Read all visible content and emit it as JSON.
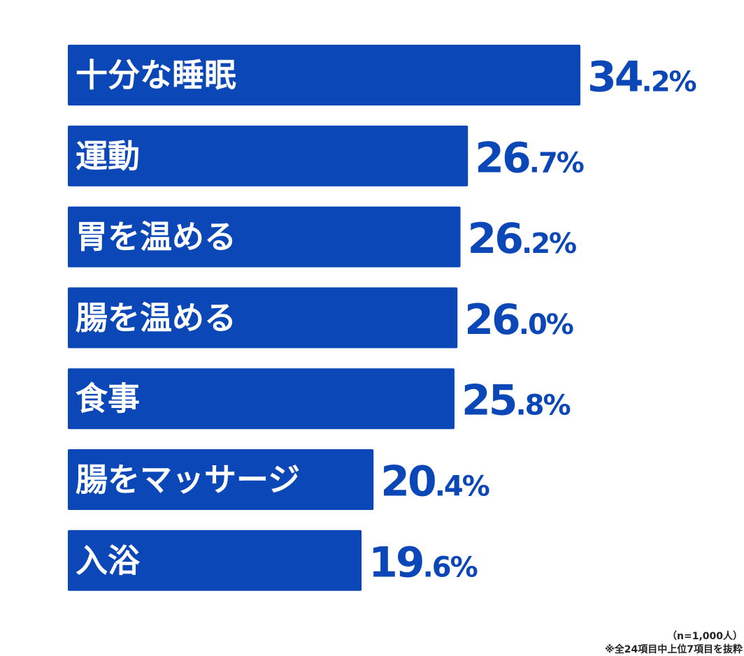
{
  "chart_data": {
    "type": "bar",
    "orientation": "horizontal",
    "categories": [
      "十分な睡眠",
      "運動",
      "胃を温める",
      "腸を温める",
      "食事",
      "腸をマッサージ",
      "入浴"
    ],
    "values": [
      34.2,
      26.7,
      26.2,
      26.0,
      25.8,
      20.4,
      19.6
    ],
    "value_labels": [
      {
        "int": "34",
        "dec": ".2%"
      },
      {
        "int": "26",
        "dec": ".7%"
      },
      {
        "int": "26",
        "dec": ".2%"
      },
      {
        "int": "26",
        "dec": ".0%"
      },
      {
        "int": "25",
        "dec": ".8%"
      },
      {
        "int": "20",
        "dec": ".4%"
      },
      {
        "int": "19",
        "dec": ".6%"
      }
    ],
    "title": "",
    "xlabel": "",
    "ylabel": "",
    "xlim": [
      0,
      34.2
    ],
    "grid": false,
    "legend": "none",
    "colors": {
      "bar": "#0c47b7",
      "label_text": "#ffffff",
      "value_text": "#0c47b7"
    }
  },
  "footnotes": {
    "sample": "（n=1,000人）",
    "source": "※全24項目中上位7項目を抜粋"
  }
}
